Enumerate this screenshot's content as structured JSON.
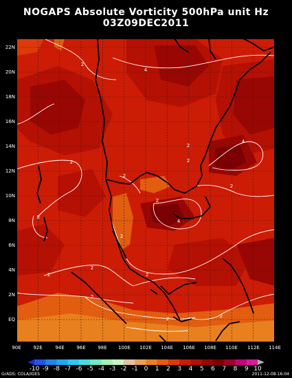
{
  "title_line1": "NOGAPS Absolute Vorticity 500hPa unit Hz",
  "title_line2": "03Z09DEC2011",
  "lat_ticks": [
    "22N",
    "20N",
    "18N",
    "16N",
    "14N",
    "12N",
    "10N",
    "8N",
    "6N",
    "4N",
    "2N",
    "EQ"
  ],
  "lon_ticks": [
    "90E",
    "92E",
    "94E",
    "96E",
    "98E",
    "100E",
    "102E",
    "104E",
    "106E",
    "108E",
    "110E",
    "112E",
    "114E"
  ],
  "colorbar": {
    "labels": [
      "-10",
      "-9",
      "-8",
      "-7",
      "-6",
      "-5",
      "-4",
      "-3",
      "-2",
      "-1",
      "0",
      "1",
      "2",
      "3",
      "4",
      "5",
      "6",
      "7",
      "8",
      "9",
      "10"
    ],
    "colors": [
      "#1c2cd6",
      "#1f55e6",
      "#1f85e6",
      "#22a8f0",
      "#31c6f2",
      "#4adbe2",
      "#6fe8c8",
      "#a6f0b2",
      "#c9f3c7",
      "#e6c0a3",
      "#e8a05a",
      "#e8801e",
      "#e25d10",
      "#dd3a0a",
      "#cc1c06",
      "#b51004",
      "#980703",
      "#7c0003",
      "#a0002c",
      "#c80078",
      "#d81a9c",
      "#b0b0b0"
    ]
  },
  "contour_labels": [
    {
      "text": "2"
    },
    {
      "text": "4"
    },
    {
      "text": "2"
    },
    {
      "text": "2"
    },
    {
      "text": "4"
    },
    {
      "text": "2"
    },
    {
      "text": "2"
    },
    {
      "text": "2"
    },
    {
      "text": "2"
    },
    {
      "text": "2"
    },
    {
      "text": "4"
    },
    {
      "text": "2"
    },
    {
      "text": "2"
    },
    {
      "text": "2"
    },
    {
      "text": "2"
    },
    {
      "text": "2"
    },
    {
      "text": "2"
    },
    {
      "text": "2"
    }
  ],
  "credit_left": "GrADS: COLA/IGES",
  "credit_right": "2011-12-08-16:04",
  "colors": {
    "field_dark": "#7c0003",
    "field_mid": "#b51004",
    "field_red": "#cc1c06",
    "field_orange": "#e25d10",
    "field_light_orange": "#e8801e",
    "coast": "#000000",
    "contour": "#ffffff",
    "grid": "#2a2a2a"
  }
}
